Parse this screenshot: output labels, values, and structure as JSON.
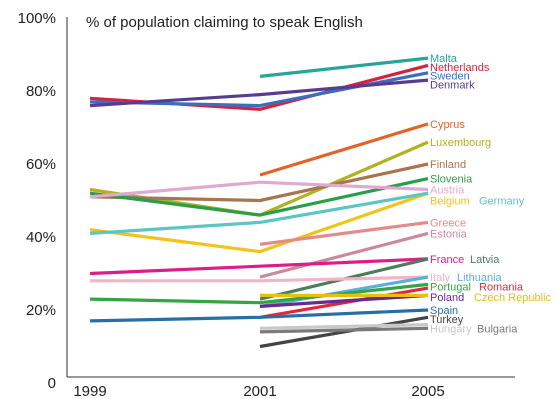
{
  "chart_data": {
    "type": "line",
    "title": "% of population claiming to speak English",
    "categories": [
      "1999",
      "2001",
      "2005"
    ],
    "y_ticks": [
      "100%",
      "80%",
      "60%",
      "40%",
      "20%",
      "0"
    ],
    "ylim": [
      0,
      100
    ],
    "grid": false,
    "legend": "direct labels at right end of each line",
    "series": [
      {
        "name": "Malta",
        "values": [
          null,
          84,
          89
        ],
        "color": "#2aa39b"
      },
      {
        "name": "Netherlands",
        "values": [
          78,
          75,
          87
        ],
        "color": "#d6213f"
      },
      {
        "name": "Sweden",
        "values": [
          77,
          76,
          85
        ],
        "color": "#3a6fbf"
      },
      {
        "name": "Denmark",
        "values": [
          76,
          79,
          83
        ],
        "color": "#5a3c8f"
      },
      {
        "name": "Cyprus",
        "values": [
          null,
          57,
          71
        ],
        "color": "#e3642a"
      },
      {
        "name": "Luxembourg",
        "values": [
          53,
          46,
          66
        ],
        "color": "#b0b21f"
      },
      {
        "name": "Finland",
        "values": [
          51,
          50,
          60
        ],
        "color": "#a8754f"
      },
      {
        "name": "Slovenia",
        "values": [
          52,
          46,
          56
        ],
        "color": "#2a9e4a"
      },
      {
        "name": "Austria",
        "values": [
          51,
          55,
          53
        ],
        "color": "#e0a9d1"
      },
      {
        "name": "Belgium",
        "values": [
          42,
          36,
          52
        ],
        "color": "#f2c319"
      },
      {
        "name": "Germany",
        "values": [
          41,
          44,
          52
        ],
        "color": "#5cc5c5"
      },
      {
        "name": "Greece",
        "values": [
          null,
          38,
          44
        ],
        "color": "#e58a8a"
      },
      {
        "name": "Estonia",
        "values": [
          null,
          29,
          41
        ],
        "color": "#c98a9b"
      },
      {
        "name": "France",
        "values": [
          30,
          32,
          34
        ],
        "color": "#dd1d8a"
      },
      {
        "name": "Latvia",
        "values": [
          null,
          23,
          34
        ],
        "color": "#4e7d5c"
      },
      {
        "name": "Italy",
        "values": [
          28,
          28,
          29
        ],
        "color": "#eeb7c7"
      },
      {
        "name": "Lithuania",
        "values": [
          null,
          21,
          29
        ],
        "color": "#5ab0dd"
      },
      {
        "name": "Portugal",
        "values": [
          23,
          22,
          27
        ],
        "color": "#33a545"
      },
      {
        "name": "Romania",
        "values": [
          null,
          18,
          26
        ],
        "color": "#e0293c"
      },
      {
        "name": "Poland",
        "values": [
          null,
          21,
          24
        ],
        "color": "#6a2a8e"
      },
      {
        "name": "Czech Republic",
        "values": [
          null,
          24,
          24
        ],
        "color": "#e5c010"
      },
      {
        "name": "Spain",
        "values": [
          17,
          18,
          20
        ],
        "color": "#276fa5"
      },
      {
        "name": "Turkey",
        "values": [
          null,
          10,
          18
        ],
        "color": "#444444"
      },
      {
        "name": "Hungary",
        "values": [
          null,
          15,
          16
        ],
        "color": "#c8c8c8"
      },
      {
        "name": "Bulgaria",
        "values": [
          null,
          14,
          15
        ],
        "color": "#7a7a7a"
      }
    ],
    "labels": [
      {
        "text": "Malta",
        "series": 0,
        "y": 89
      },
      {
        "text": "Netherlands",
        "series": 1,
        "y": 86.6
      },
      {
        "text": "Sweden",
        "series": 2,
        "y": 84.2
      },
      {
        "text": "Denmark",
        "series": 3,
        "y": 81.8
      },
      {
        "text": "Cyprus",
        "series": 4,
        "y": 71
      },
      {
        "text": "Luxembourg",
        "series": 5,
        "y": 66
      },
      {
        "text": "Finland",
        "series": 6,
        "y": 60
      },
      {
        "text": "Slovenia",
        "series": 7,
        "y": 56
      },
      {
        "text": "Austria",
        "series": 8,
        "y": 53
      },
      {
        "text": "Belgium",
        "series": 9,
        "y": 50
      },
      {
        "text": "Germany",
        "series": 10,
        "y": 50,
        "dx": 49
      },
      {
        "text": "Greece",
        "series": 11,
        "y": 44
      },
      {
        "text": "Estonia",
        "series": 12,
        "y": 41
      },
      {
        "text": "France",
        "series": 13,
        "y": 34
      },
      {
        "text": "Latvia",
        "series": 14,
        "y": 34,
        "dx": 40
      },
      {
        "text": "Italy",
        "series": 15,
        "y": 29
      },
      {
        "text": "Lithuania",
        "series": 16,
        "y": 29,
        "dx": 27
      },
      {
        "text": "Portugal",
        "series": 17,
        "y": 26.5
      },
      {
        "text": "Romania",
        "series": 18,
        "y": 26.5,
        "dx": 49
      },
      {
        "text": "Poland",
        "series": 19,
        "y": 23.5
      },
      {
        "text": "Czech Republic",
        "series": 20,
        "y": 23.5,
        "dx": 44
      },
      {
        "text": "Spain",
        "series": 21,
        "y": 20
      },
      {
        "text": "Turkey",
        "series": 22,
        "y": 17.5
      },
      {
        "text": "Hungary",
        "series": 23,
        "y": 15
      },
      {
        "text": "Bulgaria",
        "series": 24,
        "y": 15,
        "dx": 47
      }
    ]
  }
}
